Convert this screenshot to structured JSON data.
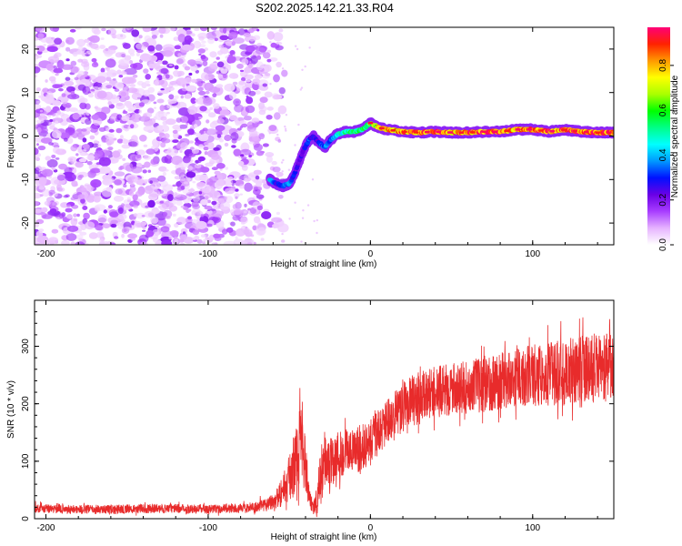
{
  "title": "S202.2025.142.21.33.R04",
  "chart_data": [
    {
      "type": "heatmap",
      "xlabel": "Height of straight line (km)",
      "ylabel": "Frequency (Hz)",
      "xlim": [
        -207,
        150
      ],
      "ylim": [
        -25,
        25
      ],
      "xticks": [
        -200,
        -100,
        0,
        100
      ],
      "yticks": [
        -20,
        -10,
        0,
        10,
        20
      ],
      "colorbar": {
        "label": "Normalized spectral amplitude",
        "range": [
          0,
          0.97
        ],
        "ticks": [
          "0.0",
          "0.2",
          "0.4",
          "0.6",
          "0.8"
        ],
        "tick_values": [
          0.0,
          0.2,
          0.4,
          0.6,
          0.8
        ],
        "colors": [
          "#ffffff",
          "#e6b3ff",
          "#a83dff",
          "#6a00e6",
          "#0011ff",
          "#0099ff",
          "#00ffff",
          "#00ff88",
          "#00ff00",
          "#aaff00",
          "#ffff00",
          "#ff9900",
          "#ff2200",
          "#ff0077"
        ]
      },
      "signal_trace": {
        "x": [
          -62,
          -58,
          -54,
          -50,
          -47,
          -44,
          -41,
          -38,
          -35,
          -32,
          -28,
          -25,
          -20,
          -15,
          -10,
          -5,
          0,
          5,
          10,
          20,
          30,
          40,
          50,
          60,
          70,
          80,
          90,
          100,
          110,
          120,
          130,
          140,
          150
        ],
        "y": [
          -10,
          -11,
          -11.5,
          -11,
          -9,
          -6,
          -3,
          -1,
          0,
          -1.5,
          -2.5,
          -1,
          0.5,
          1,
          1,
          1.5,
          3,
          2,
          1.5,
          1,
          0.8,
          1,
          0.8,
          0.8,
          1,
          1,
          1.5,
          1.5,
          1,
          1.5,
          1,
          0.8,
          0.8
        ],
        "amplitude": [
          0.5,
          0.3,
          0.35,
          0.4,
          0.3,
          0.25,
          0.3,
          0.35,
          0.3,
          0.3,
          0.4,
          0.35,
          0.5,
          0.55,
          0.6,
          0.6,
          0.65,
          0.8,
          0.85,
          0.9,
          0.92,
          0.95,
          0.9,
          0.93,
          0.95,
          0.97,
          0.9,
          0.92,
          0.95,
          0.97,
          0.93,
          0.95,
          0.97
        ]
      },
      "noise_region_x": [
        -207,
        -65
      ],
      "noise_region_y": [
        -25,
        25
      ]
    },
    {
      "type": "line",
      "xlabel": "Height of straight line (km)",
      "ylabel": "SNR (10 * v/v)",
      "xlim": [
        -207,
        150
      ],
      "ylim": [
        0,
        380
      ],
      "xticks": [
        -200,
        -100,
        0,
        100
      ],
      "yticks": [
        0,
        100,
        200,
        300
      ],
      "series": [
        {
          "color": "#e82b2b",
          "x": [
            -207,
            -180,
            -150,
            -120,
            -100,
            -80,
            -70,
            -60,
            -55,
            -50,
            -45,
            -42,
            -40,
            -38,
            -35,
            -32,
            -30,
            -28,
            -25,
            -20,
            -15,
            -10,
            -5,
            0,
            5,
            10,
            15,
            20,
            25,
            30,
            40,
            50,
            60,
            70,
            80,
            90,
            100,
            110,
            120,
            130,
            140,
            150
          ],
          "y": [
            18,
            16,
            17,
            18,
            17,
            18,
            20,
            30,
            45,
            70,
            110,
            150,
            100,
            40,
            15,
            50,
            80,
            95,
            100,
            110,
            120,
            115,
            125,
            135,
            150,
            165,
            180,
            195,
            205,
            210,
            220,
            225,
            230,
            235,
            240,
            245,
            250,
            252,
            255,
            258,
            262,
            268
          ],
          "noise_amplitude": [
            8,
            8,
            8,
            8,
            8,
            8,
            10,
            15,
            25,
            40,
            60,
            80,
            50,
            20,
            10,
            40,
            50,
            50,
            45,
            45,
            40,
            40,
            40,
            40,
            40,
            40,
            45,
            45,
            45,
            45,
            45,
            45,
            45,
            50,
            50,
            50,
            55,
            55,
            60,
            65,
            60,
            55
          ]
        }
      ]
    }
  ]
}
